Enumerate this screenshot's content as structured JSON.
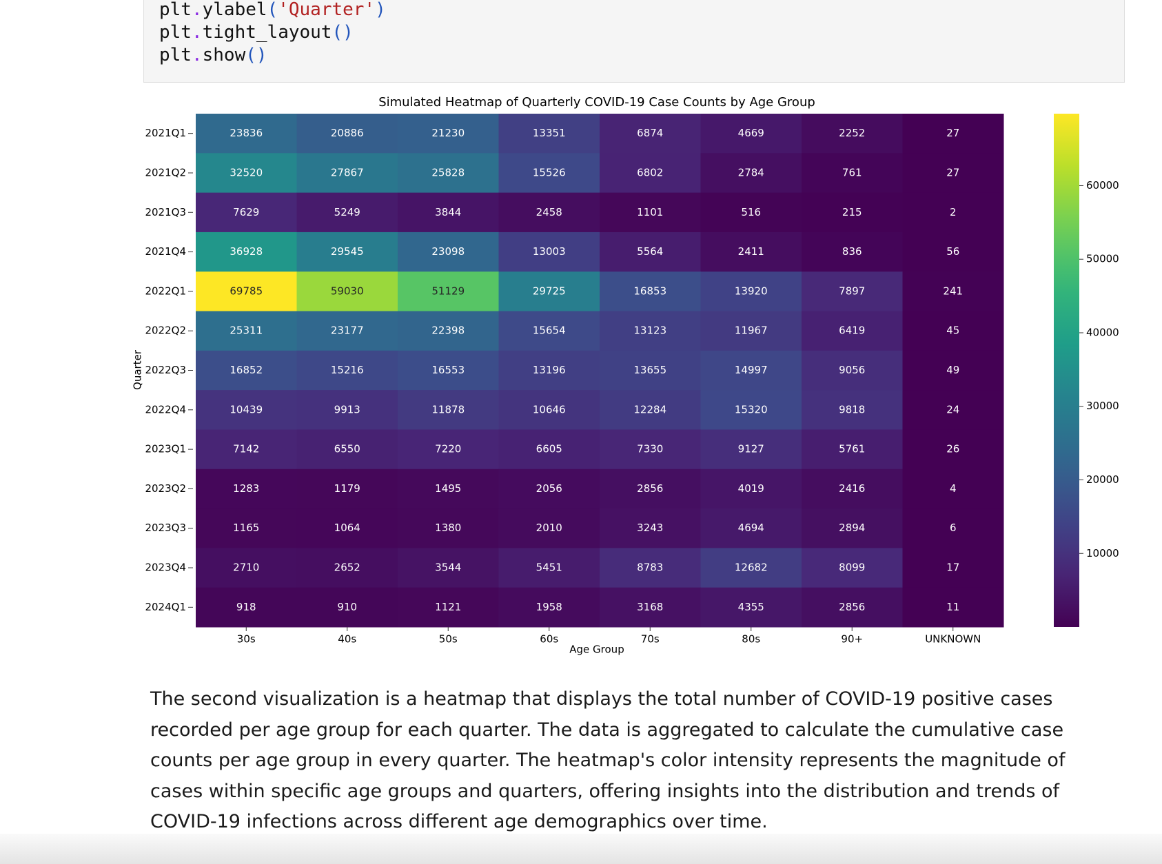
{
  "code": {
    "lines": [
      [
        "plt",
        ".",
        "ylabel",
        "(",
        "'Quarter'",
        ")"
      ],
      [
        "plt",
        ".",
        "tight_layout",
        "(",
        ")"
      ],
      [
        "plt",
        ".",
        "show",
        "(",
        ")"
      ]
    ]
  },
  "chart_data": {
    "type": "heatmap",
    "title": "Simulated Heatmap of Quarterly COVID-19 Case Counts by Age Group",
    "x_label": "Age Group",
    "y_label": "Quarter",
    "x_categories": [
      "30s",
      "40s",
      "50s",
      "60s",
      "70s",
      "80s",
      "90+",
      "UNKNOWN"
    ],
    "y_categories": [
      "2021Q1",
      "2021Q2",
      "2021Q3",
      "2021Q4",
      "2022Q1",
      "2022Q2",
      "2022Q3",
      "2022Q4",
      "2023Q1",
      "2023Q2",
      "2023Q3",
      "2023Q4",
      "2024Q1"
    ],
    "values": [
      [
        23836,
        20886,
        21230,
        13351,
        6874,
        4669,
        2252,
        27
      ],
      [
        32520,
        27867,
        25828,
        15526,
        6802,
        2784,
        761,
        27
      ],
      [
        7629,
        5249,
        3844,
        2458,
        1101,
        516,
        215,
        2
      ],
      [
        36928,
        29545,
        23098,
        13003,
        5564,
        2411,
        836,
        56
      ],
      [
        69785,
        59030,
        51129,
        29725,
        16853,
        13920,
        7897,
        241
      ],
      [
        25311,
        23177,
        22398,
        15654,
        13123,
        11967,
        6419,
        45
      ],
      [
        16852,
        15216,
        16553,
        13196,
        13655,
        14997,
        9056,
        49
      ],
      [
        10439,
        9913,
        11878,
        10646,
        12284,
        15320,
        9818,
        24
      ],
      [
        7142,
        6550,
        7220,
        6605,
        7330,
        9127,
        5761,
        26
      ],
      [
        1283,
        1179,
        1495,
        2056,
        2856,
        4019,
        2416,
        4
      ],
      [
        1165,
        1064,
        1380,
        2010,
        3243,
        4694,
        2894,
        6
      ],
      [
        2710,
        2652,
        3544,
        5451,
        8783,
        12682,
        8099,
        17
      ],
      [
        918,
        910,
        1121,
        1958,
        3168,
        4355,
        2856,
        11
      ]
    ],
    "colormap": "viridis",
    "clim": [
      2,
      69785
    ],
    "cticks": [
      10000,
      20000,
      30000,
      40000,
      50000,
      60000
    ]
  },
  "paragraph": "The second visualization is a heatmap that displays the total number of COVID-19 positive cases recorded per age group for each quarter. The data is aggregated to calculate the cumulative case counts per age group in every quarter. The heatmap's color intensity represents the magnitude of cases within specific age groups and quarters, offering insights into the distribution and trends of COVID-19 infections across different age demographics over time."
}
